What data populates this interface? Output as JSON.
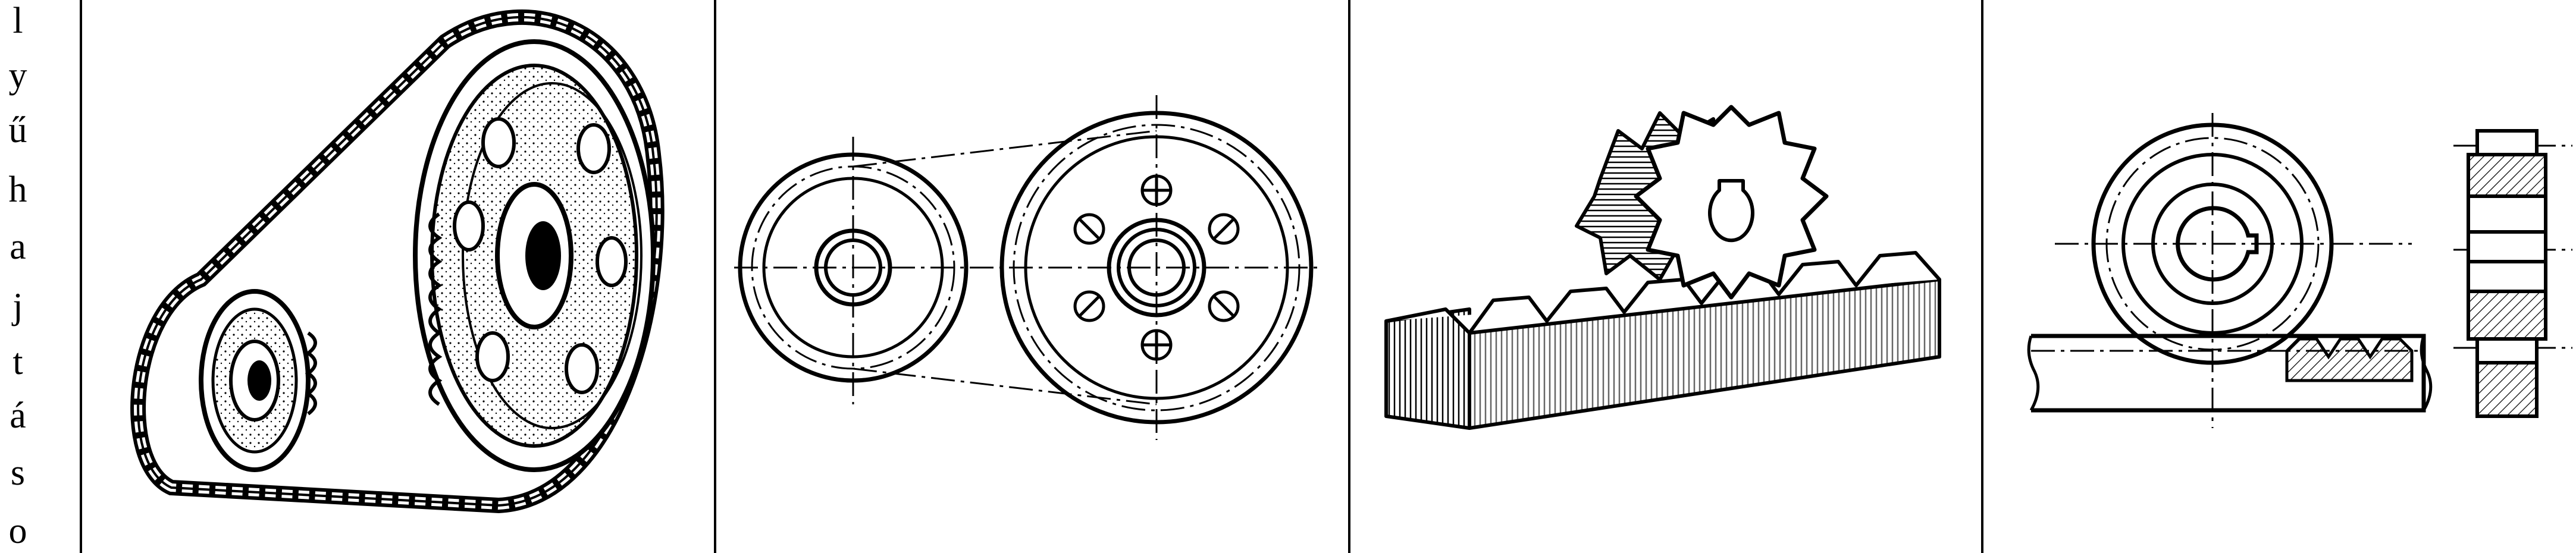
{
  "side_label": {
    "letters": [
      "l",
      "y",
      "ű",
      "h",
      "a",
      "j",
      "t",
      "á",
      "s",
      "o"
    ]
  },
  "panels": [
    {
      "subject": "chain-drive-illustration"
    },
    {
      "subject": "chain-drive-technical-drawing"
    },
    {
      "subject": "rack-and-pinion-illustration"
    },
    {
      "subject": "rack-and-pinion-technical-drawing"
    }
  ],
  "colors": {
    "ink": "#000000",
    "paper": "#ffffff",
    "shade": "#9a9a9a"
  }
}
